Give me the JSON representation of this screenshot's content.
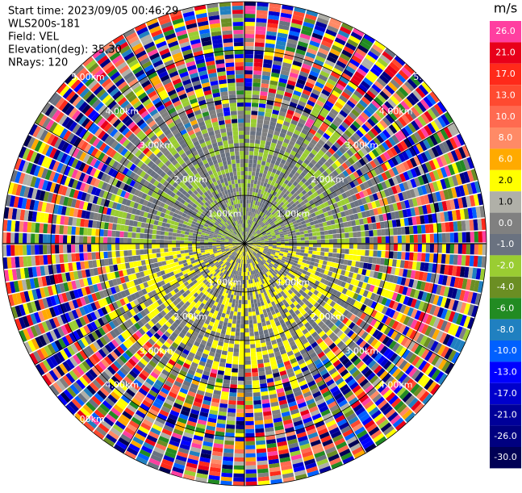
{
  "chart_data": {
    "type": "radar-ppi",
    "annotations": [
      "Start time: 2023/09/05 00:46:29",
      "WLS200s-181",
      "Field: VEL",
      "Elevation(deg): 35.30",
      "NRays: 120"
    ],
    "range_rings": [
      {
        "value": 1,
        "label": "1.00km"
      },
      {
        "value": 2,
        "label": "2.00km"
      },
      {
        "value": 3,
        "label": "3.00km"
      },
      {
        "value": 4,
        "label": "4.00km"
      },
      {
        "value": 5,
        "label": "5.00km"
      }
    ],
    "colorbar": {
      "unit": "m/s",
      "levels": [
        {
          "value": 26,
          "label": "26.0",
          "color": "#ff3fa0"
        },
        {
          "value": 21,
          "label": "21.0",
          "color": "#e8001a"
        },
        {
          "value": 17,
          "label": "17.0",
          "color": "#ff2a1a"
        },
        {
          "value": 13,
          "label": "13.0",
          "color": "#ff4a30"
        },
        {
          "value": 10,
          "label": "10.0",
          "color": "#ff6a50"
        },
        {
          "value": 8,
          "label": "8.0",
          "color": "#ff8a66"
        },
        {
          "value": 6,
          "label": "6.0",
          "color": "#ffaa00"
        },
        {
          "value": 2,
          "label": "2.0",
          "color": "#ffff00"
        },
        {
          "value": 1,
          "label": "1.0",
          "color": "#b0b0a8"
        },
        {
          "value": 0,
          "label": "0.0",
          "color": "#808080"
        },
        {
          "value": -1,
          "label": "-1.0",
          "color": "#6a7280"
        },
        {
          "value": -2,
          "label": "-2.0",
          "color": "#9acd32"
        },
        {
          "value": -4,
          "label": "-4.0",
          "color": "#6b8e23"
        },
        {
          "value": -6,
          "label": "-6.0",
          "color": "#228b22"
        },
        {
          "value": -8,
          "label": "-8.0",
          "color": "#2080c0"
        },
        {
          "value": -10,
          "label": "-10.0",
          "color": "#0060ff"
        },
        {
          "value": -13,
          "label": "-13.0",
          "color": "#0000ff"
        },
        {
          "value": -17,
          "label": "-17.0",
          "color": "#0000cc"
        },
        {
          "value": -21,
          "label": "-21.0",
          "color": "#000099"
        },
        {
          "value": -26,
          "label": "-26.0",
          "color": "#000080"
        },
        {
          "value": -30,
          "label": "-30.0",
          "color": "#000055"
        }
      ]
    }
  }
}
